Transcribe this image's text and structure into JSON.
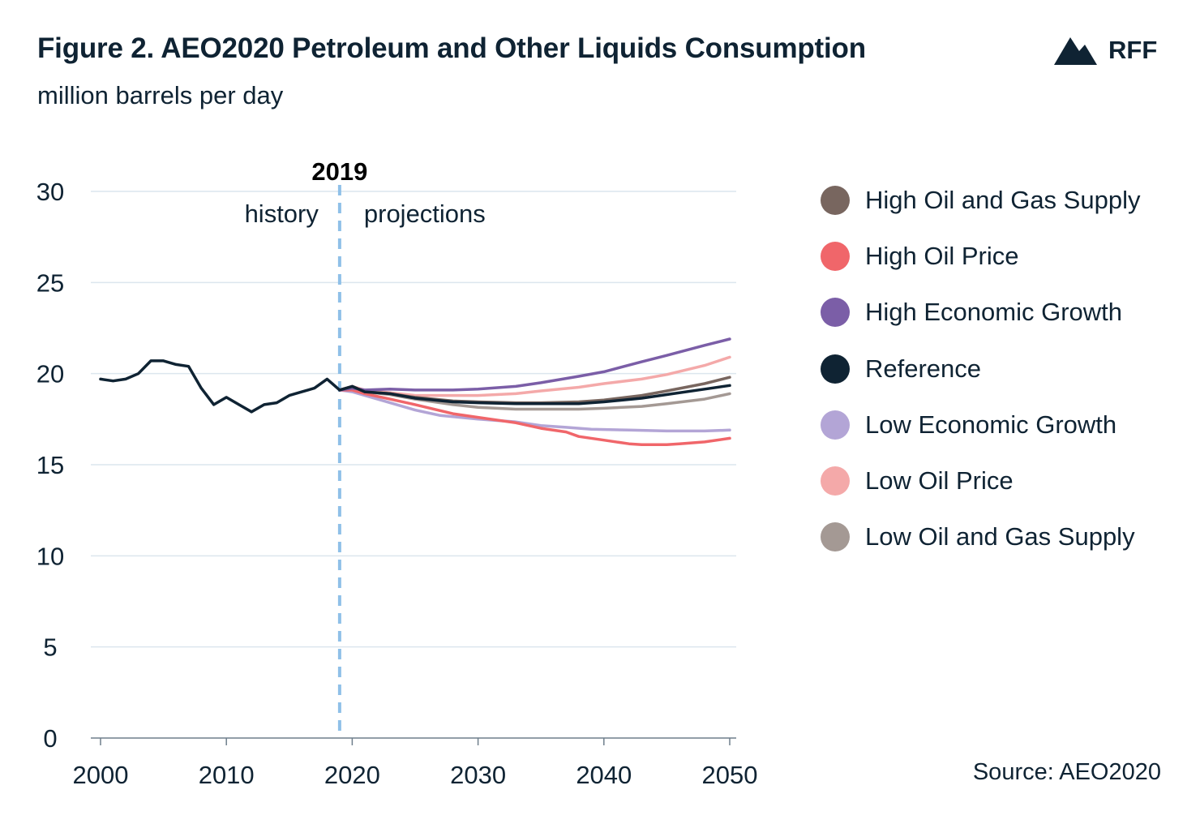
{
  "header": {
    "title": "Figure 2. AEO2020 Petroleum and Other Liquids Consumption",
    "subtitle": "million barrels per day",
    "logo_text": "RFF"
  },
  "source": "Source: AEO2020",
  "colors": {
    "text": "#0f2333",
    "grid": "#dce6ee",
    "divider": "#8fc0e8"
  },
  "annotations": {
    "divider_label": "2019",
    "history_label": "history",
    "projections_label": "projections"
  },
  "chart_data": {
    "type": "line",
    "xlabel": "",
    "ylabel": "",
    "xlim": [
      2000,
      2050
    ],
    "ylim": [
      0,
      30
    ],
    "x_ticks": [
      2000,
      2010,
      2020,
      2030,
      2040,
      2050
    ],
    "y_ticks": [
      0,
      5,
      10,
      15,
      20,
      25,
      30
    ],
    "grid": true,
    "legend_placement": "right",
    "divider_x": 2019,
    "history": {
      "name": "",
      "color": "#0f2333",
      "x": [
        2000,
        2001,
        2002,
        2003,
        2004,
        2005,
        2006,
        2007,
        2008,
        2009,
        2010,
        2011,
        2012,
        2013,
        2014,
        2015,
        2016,
        2017,
        2018,
        2019
      ],
      "values": [
        19.7,
        19.6,
        19.7,
        20.0,
        20.7,
        20.7,
        20.5,
        20.4,
        19.2,
        18.3,
        18.7,
        18.3,
        17.9,
        18.3,
        18.4,
        18.8,
        19.0,
        19.2,
        19.7,
        19.1
      ]
    },
    "series": [
      {
        "name": "High Oil and Gas Supply",
        "color": "#78665f",
        "x": [
          2019,
          2020,
          2021,
          2023,
          2025,
          2028,
          2030,
          2033,
          2035,
          2038,
          2040,
          2043,
          2045,
          2048,
          2050
        ],
        "values": [
          19.1,
          19.3,
          19.0,
          18.9,
          18.7,
          18.5,
          18.45,
          18.4,
          18.4,
          18.45,
          18.55,
          18.8,
          19.05,
          19.45,
          19.8
        ]
      },
      {
        "name": "High Oil Price",
        "color": "#f0666a",
        "x": [
          2019,
          2020,
          2021,
          2023,
          2025,
          2028,
          2030,
          2033,
          2035,
          2037,
          2038,
          2040,
          2042,
          2043,
          2045,
          2046,
          2048,
          2050
        ],
        "values": [
          19.1,
          19.1,
          18.9,
          18.6,
          18.3,
          17.8,
          17.6,
          17.3,
          17.0,
          16.8,
          16.55,
          16.35,
          16.15,
          16.1,
          16.1,
          16.15,
          16.25,
          16.45
        ]
      },
      {
        "name": "High Economic Growth",
        "color": "#7b5ea7",
        "x": [
          2019,
          2020,
          2021,
          2023,
          2025,
          2028,
          2030,
          2033,
          2035,
          2038,
          2040,
          2043,
          2045,
          2048,
          2050
        ],
        "values": [
          19.1,
          19.2,
          19.1,
          19.15,
          19.1,
          19.1,
          19.15,
          19.3,
          19.5,
          19.85,
          20.1,
          20.65,
          21.0,
          21.55,
          21.9
        ]
      },
      {
        "name": "Reference",
        "color": "#0f2333",
        "x": [
          2019,
          2020,
          2021,
          2023,
          2025,
          2028,
          2030,
          2033,
          2035,
          2038,
          2040,
          2043,
          2045,
          2048,
          2050
        ],
        "values": [
          19.1,
          19.3,
          19.0,
          18.9,
          18.65,
          18.45,
          18.4,
          18.35,
          18.35,
          18.35,
          18.45,
          18.65,
          18.85,
          19.15,
          19.35
        ]
      },
      {
        "name": "Low Economic Growth",
        "color": "#b3a5d6",
        "x": [
          2019,
          2020,
          2021,
          2023,
          2025,
          2027,
          2030,
          2033,
          2035,
          2037,
          2039,
          2042,
          2045,
          2048,
          2050
        ],
        "values": [
          19.1,
          19.0,
          18.8,
          18.4,
          18.0,
          17.7,
          17.5,
          17.35,
          17.15,
          17.05,
          16.95,
          16.9,
          16.85,
          16.85,
          16.9
        ]
      },
      {
        "name": "Low Oil Price",
        "color": "#f4a9a9",
        "x": [
          2019,
          2020,
          2021,
          2023,
          2025,
          2028,
          2030,
          2033,
          2035,
          2038,
          2040,
          2043,
          2045,
          2048,
          2050
        ],
        "values": [
          19.1,
          19.3,
          19.1,
          18.95,
          18.8,
          18.8,
          18.8,
          18.9,
          19.05,
          19.25,
          19.45,
          19.7,
          19.95,
          20.45,
          20.9
        ]
      },
      {
        "name": "Low Oil and Gas Supply",
        "color": "#a49994",
        "x": [
          2019,
          2020,
          2021,
          2023,
          2025,
          2028,
          2030,
          2033,
          2035,
          2038,
          2040,
          2043,
          2045,
          2048,
          2050
        ],
        "values": [
          19.1,
          19.3,
          19.0,
          18.85,
          18.6,
          18.3,
          18.15,
          18.05,
          18.05,
          18.05,
          18.1,
          18.2,
          18.35,
          18.6,
          18.9
        ]
      }
    ]
  }
}
